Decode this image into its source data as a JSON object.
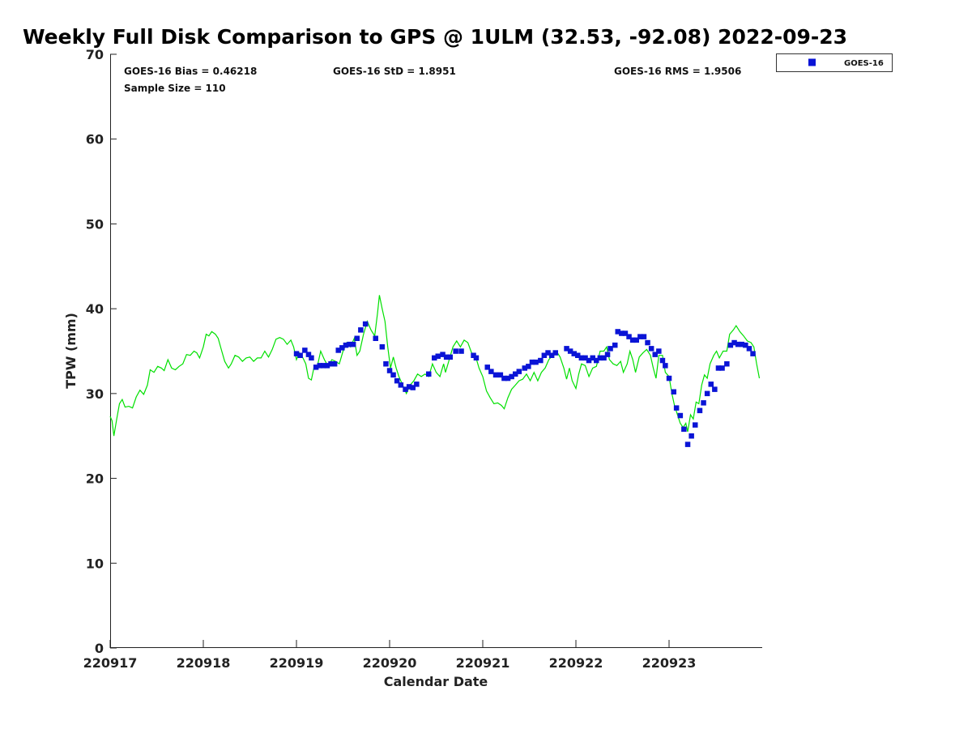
{
  "chart_data": {
    "type": "scatter",
    "title": "Weekly Full Disk Comparison to GPS @ 1ULM (32.53, -92.08) 2022-09-23",
    "xlabel": "Calendar Date",
    "ylabel": "TPW (mm)",
    "xlim": [
      0,
      7
    ],
    "ylim": [
      0,
      70
    ],
    "x_ticks": [
      {
        "value": 0,
        "label": "220917"
      },
      {
        "value": 1,
        "label": "220918"
      },
      {
        "value": 2,
        "label": "220919"
      },
      {
        "value": 3,
        "label": "220920"
      },
      {
        "value": 4,
        "label": "220921"
      },
      {
        "value": 5,
        "label": "220922"
      },
      {
        "value": 6,
        "label": "220923"
      }
    ],
    "y_ticks": [
      0,
      10,
      20,
      30,
      40,
      50,
      60,
      70
    ],
    "grid": false,
    "legend": {
      "position": "top-right",
      "entries": [
        "GOES-16"
      ]
    },
    "stats": {
      "bias": "GOES-16 Bias = 0.46218",
      "std": "GOES-16 StD = 1.8951",
      "rms": "GOES-16 RMS = 1.9506",
      "sample_size": "Sample Size = 110"
    },
    "colors": {
      "goes": "#0a14d6",
      "gps": "#00e000"
    },
    "series": [
      {
        "name": "GOES-16",
        "style": "markers",
        "points": [
          [
            2.0,
            34.7
          ],
          [
            2.04,
            34.5
          ],
          [
            2.09,
            35.1
          ],
          [
            2.13,
            34.6
          ],
          [
            2.16,
            34.2
          ],
          [
            2.21,
            33.1
          ],
          [
            2.25,
            33.3
          ],
          [
            2.29,
            33.3
          ],
          [
            2.33,
            33.3
          ],
          [
            2.37,
            33.5
          ],
          [
            2.41,
            33.5
          ],
          [
            2.45,
            35.1
          ],
          [
            2.49,
            35.4
          ],
          [
            2.53,
            35.7
          ],
          [
            2.57,
            35.8
          ],
          [
            2.61,
            35.8
          ],
          [
            2.65,
            36.5
          ],
          [
            2.69,
            37.5
          ],
          [
            2.74,
            38.2
          ],
          [
            2.85,
            36.5
          ],
          [
            2.92,
            35.5
          ],
          [
            2.96,
            33.5
          ],
          [
            3.0,
            32.7
          ],
          [
            3.04,
            32.2
          ],
          [
            3.08,
            31.5
          ],
          [
            3.12,
            31.0
          ],
          [
            3.17,
            30.5
          ],
          [
            3.21,
            30.8
          ],
          [
            3.25,
            30.7
          ],
          [
            3.29,
            31.1
          ],
          [
            3.42,
            32.3
          ],
          [
            3.48,
            34.2
          ],
          [
            3.52,
            34.4
          ],
          [
            3.57,
            34.6
          ],
          [
            3.61,
            34.3
          ],
          [
            3.65,
            34.3
          ],
          [
            3.71,
            35.0
          ],
          [
            3.77,
            35.0
          ],
          [
            3.9,
            34.5
          ],
          [
            3.93,
            34.2
          ],
          [
            4.05,
            33.1
          ],
          [
            4.09,
            32.6
          ],
          [
            4.14,
            32.2
          ],
          [
            4.19,
            32.2
          ],
          [
            4.23,
            31.8
          ],
          [
            4.27,
            31.8
          ],
          [
            4.31,
            32.0
          ],
          [
            4.35,
            32.3
          ],
          [
            4.39,
            32.6
          ],
          [
            4.45,
            33.0
          ],
          [
            4.49,
            33.2
          ],
          [
            4.53,
            33.7
          ],
          [
            4.57,
            33.7
          ],
          [
            4.62,
            33.9
          ],
          [
            4.66,
            34.5
          ],
          [
            4.7,
            34.8
          ],
          [
            4.74,
            34.5
          ],
          [
            4.78,
            34.8
          ],
          [
            4.9,
            35.3
          ],
          [
            4.94,
            35.0
          ],
          [
            4.98,
            34.7
          ],
          [
            5.02,
            34.5
          ],
          [
            5.06,
            34.2
          ],
          [
            5.1,
            34.2
          ],
          [
            5.14,
            33.9
          ],
          [
            5.18,
            34.2
          ],
          [
            5.22,
            33.9
          ],
          [
            5.26,
            34.2
          ],
          [
            5.3,
            34.2
          ],
          [
            5.34,
            34.6
          ],
          [
            5.37,
            35.3
          ],
          [
            5.42,
            35.7
          ],
          [
            5.45,
            37.3
          ],
          [
            5.49,
            37.1
          ],
          [
            5.53,
            37.1
          ],
          [
            5.57,
            36.7
          ],
          [
            5.61,
            36.3
          ],
          [
            5.65,
            36.3
          ],
          [
            5.69,
            36.7
          ],
          [
            5.73,
            36.7
          ],
          [
            5.77,
            36.0
          ],
          [
            5.81,
            35.3
          ],
          [
            5.85,
            34.6
          ],
          [
            5.89,
            35.0
          ],
          [
            5.93,
            33.9
          ],
          [
            5.96,
            33.3
          ],
          [
            6.0,
            31.8
          ],
          [
            6.05,
            30.2
          ],
          [
            6.08,
            28.3
          ],
          [
            6.12,
            27.4
          ],
          [
            6.16,
            25.8
          ],
          [
            6.2,
            24.0
          ],
          [
            6.24,
            25.0
          ],
          [
            6.28,
            26.3
          ],
          [
            6.33,
            28.0
          ],
          [
            6.37,
            28.9
          ],
          [
            6.41,
            30.0
          ],
          [
            6.45,
            31.1
          ],
          [
            6.49,
            30.5
          ],
          [
            6.53,
            33.0
          ],
          [
            6.57,
            33.0
          ],
          [
            6.62,
            33.5
          ],
          [
            6.66,
            35.7
          ],
          [
            6.7,
            36.0
          ],
          [
            6.74,
            35.8
          ],
          [
            6.78,
            35.8
          ],
          [
            6.82,
            35.7
          ],
          [
            6.86,
            35.3
          ],
          [
            6.9,
            34.7
          ]
        ]
      },
      {
        "name": "GPS",
        "style": "line",
        "points": [
          [
            0.0,
            27.3
          ],
          [
            0.02,
            26.8
          ],
          [
            0.04,
            25.0
          ],
          [
            0.07,
            27.0
          ],
          [
            0.1,
            28.8
          ],
          [
            0.13,
            29.3
          ],
          [
            0.16,
            28.4
          ],
          [
            0.2,
            28.5
          ],
          [
            0.24,
            28.3
          ],
          [
            0.28,
            29.6
          ],
          [
            0.32,
            30.4
          ],
          [
            0.36,
            29.9
          ],
          [
            0.4,
            31.0
          ],
          [
            0.43,
            32.8
          ],
          [
            0.47,
            32.5
          ],
          [
            0.51,
            33.2
          ],
          [
            0.55,
            33.0
          ],
          [
            0.58,
            32.7
          ],
          [
            0.62,
            34.0
          ],
          [
            0.66,
            33.0
          ],
          [
            0.7,
            32.8
          ],
          [
            0.74,
            33.2
          ],
          [
            0.78,
            33.5
          ],
          [
            0.82,
            34.6
          ],
          [
            0.86,
            34.5
          ],
          [
            0.9,
            35.0
          ],
          [
            0.93,
            34.8
          ],
          [
            0.96,
            34.2
          ],
          [
            1.0,
            35.5
          ],
          [
            1.03,
            37.0
          ],
          [
            1.06,
            36.8
          ],
          [
            1.09,
            37.3
          ],
          [
            1.13,
            37.0
          ],
          [
            1.16,
            36.5
          ],
          [
            1.19,
            35.3
          ],
          [
            1.23,
            33.8
          ],
          [
            1.27,
            33.0
          ],
          [
            1.3,
            33.5
          ],
          [
            1.34,
            34.5
          ],
          [
            1.38,
            34.3
          ],
          [
            1.42,
            33.8
          ],
          [
            1.46,
            34.2
          ],
          [
            1.5,
            34.3
          ],
          [
            1.54,
            33.8
          ],
          [
            1.58,
            34.2
          ],
          [
            1.62,
            34.2
          ],
          [
            1.66,
            35.0
          ],
          [
            1.7,
            34.3
          ],
          [
            1.74,
            35.2
          ],
          [
            1.78,
            36.4
          ],
          [
            1.82,
            36.6
          ],
          [
            1.86,
            36.4
          ],
          [
            1.9,
            35.8
          ],
          [
            1.94,
            36.3
          ],
          [
            1.97,
            35.5
          ],
          [
            2.0,
            34.0
          ],
          [
            2.03,
            34.8
          ],
          [
            2.07,
            34.2
          ],
          [
            2.1,
            33.5
          ],
          [
            2.13,
            31.8
          ],
          [
            2.16,
            31.6
          ],
          [
            2.19,
            33.2
          ],
          [
            2.22,
            33.0
          ],
          [
            2.26,
            35.0
          ],
          [
            2.3,
            34.0
          ],
          [
            2.34,
            33.2
          ],
          [
            2.38,
            34.0
          ],
          [
            2.42,
            33.8
          ],
          [
            2.46,
            33.5
          ],
          [
            2.5,
            35.0
          ],
          [
            2.54,
            36.0
          ],
          [
            2.58,
            35.5
          ],
          [
            2.62,
            36.5
          ],
          [
            2.65,
            34.5
          ],
          [
            2.68,
            35.0
          ],
          [
            2.72,
            37.0
          ],
          [
            2.76,
            38.5
          ],
          [
            2.8,
            37.5
          ],
          [
            2.84,
            36.8
          ],
          [
            2.87,
            39.5
          ],
          [
            2.89,
            41.6
          ],
          [
            2.92,
            40.0
          ],
          [
            2.95,
            38.5
          ],
          [
            2.98,
            35.5
          ],
          [
            3.01,
            33.0
          ],
          [
            3.04,
            34.3
          ],
          [
            3.07,
            33.0
          ],
          [
            3.1,
            32.0
          ],
          [
            3.14,
            31.0
          ],
          [
            3.18,
            30.0
          ],
          [
            3.22,
            31.0
          ],
          [
            3.26,
            31.5
          ],
          [
            3.3,
            32.3
          ],
          [
            3.34,
            32.0
          ],
          [
            3.38,
            32.3
          ],
          [
            3.42,
            32.0
          ],
          [
            3.46,
            33.5
          ],
          [
            3.5,
            32.5
          ],
          [
            3.54,
            32.0
          ],
          [
            3.58,
            33.5
          ],
          [
            3.6,
            32.5
          ],
          [
            3.64,
            34.0
          ],
          [
            3.68,
            35.5
          ],
          [
            3.72,
            36.2
          ],
          [
            3.76,
            35.5
          ],
          [
            3.8,
            36.3
          ],
          [
            3.84,
            36.0
          ],
          [
            3.88,
            34.8
          ],
          [
            3.92,
            34.5
          ],
          [
            3.96,
            33.0
          ],
          [
            4.0,
            32.0
          ],
          [
            4.04,
            30.3
          ],
          [
            4.08,
            29.5
          ],
          [
            4.12,
            28.8
          ],
          [
            4.16,
            28.9
          ],
          [
            4.2,
            28.6
          ],
          [
            4.23,
            28.2
          ],
          [
            4.27,
            29.5
          ],
          [
            4.31,
            30.5
          ],
          [
            4.35,
            31.0
          ],
          [
            4.39,
            31.5
          ],
          [
            4.43,
            31.7
          ],
          [
            4.47,
            32.3
          ],
          [
            4.51,
            31.5
          ],
          [
            4.55,
            32.5
          ],
          [
            4.59,
            31.5
          ],
          [
            4.63,
            32.5
          ],
          [
            4.67,
            33.0
          ],
          [
            4.71,
            34.0
          ],
          [
            4.75,
            34.5
          ],
          [
            4.79,
            35.0
          ],
          [
            4.83,
            34.3
          ],
          [
            4.87,
            33.0
          ],
          [
            4.9,
            31.7
          ],
          [
            4.93,
            33.0
          ],
          [
            4.96,
            31.5
          ],
          [
            5.0,
            30.6
          ],
          [
            5.03,
            32.3
          ],
          [
            5.06,
            33.5
          ],
          [
            5.1,
            33.3
          ],
          [
            5.14,
            32.0
          ],
          [
            5.18,
            33.0
          ],
          [
            5.22,
            33.2
          ],
          [
            5.26,
            35.0
          ],
          [
            5.3,
            35.0
          ],
          [
            5.33,
            35.5
          ],
          [
            5.36,
            34.0
          ],
          [
            5.4,
            33.5
          ],
          [
            5.44,
            33.3
          ],
          [
            5.48,
            33.8
          ],
          [
            5.51,
            32.5
          ],
          [
            5.55,
            33.5
          ],
          [
            5.58,
            35.0
          ],
          [
            5.61,
            34.0
          ],
          [
            5.64,
            32.5
          ],
          [
            5.68,
            34.3
          ],
          [
            5.72,
            34.8
          ],
          [
            5.76,
            35.2
          ],
          [
            5.8,
            34.5
          ],
          [
            5.83,
            33.0
          ],
          [
            5.86,
            31.8
          ],
          [
            5.89,
            34.5
          ],
          [
            5.93,
            34.5
          ],
          [
            5.96,
            32.5
          ],
          [
            6.0,
            32.0
          ],
          [
            6.03,
            30.0
          ],
          [
            6.06,
            28.5
          ],
          [
            6.09,
            27.5
          ],
          [
            6.12,
            26.5
          ],
          [
            6.15,
            26.0
          ],
          [
            6.18,
            26.5
          ],
          [
            6.2,
            25.5
          ],
          [
            6.23,
            27.5
          ],
          [
            6.26,
            27.0
          ],
          [
            6.29,
            29.0
          ],
          [
            6.32,
            28.8
          ],
          [
            6.35,
            31.0
          ],
          [
            6.38,
            32.2
          ],
          [
            6.41,
            31.8
          ],
          [
            6.44,
            33.5
          ],
          [
            6.48,
            34.5
          ],
          [
            6.51,
            35.0
          ],
          [
            6.54,
            34.2
          ],
          [
            6.58,
            35.0
          ],
          [
            6.62,
            35.0
          ],
          [
            6.65,
            37.0
          ],
          [
            6.69,
            37.5
          ],
          [
            6.72,
            38.0
          ],
          [
            6.76,
            37.3
          ],
          [
            6.8,
            36.8
          ],
          [
            6.84,
            36.2
          ],
          [
            6.88,
            36.0
          ],
          [
            6.91,
            35.5
          ],
          [
            6.94,
            33.5
          ],
          [
            6.97,
            31.8
          ]
        ]
      }
    ]
  }
}
